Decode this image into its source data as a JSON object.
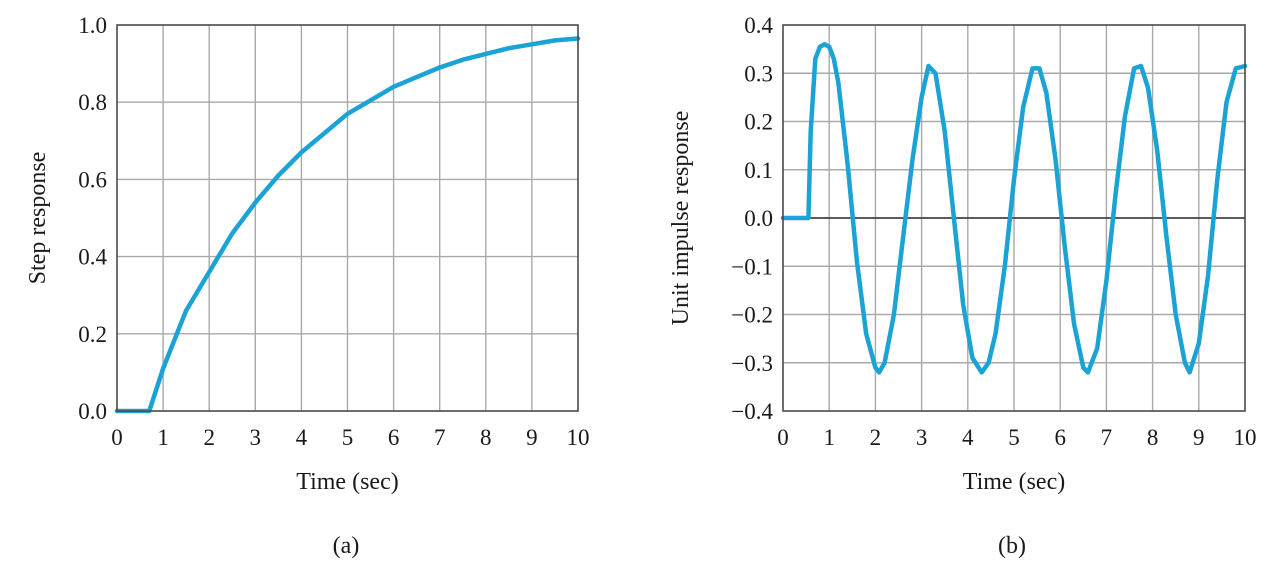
{
  "chart_data": [
    {
      "type": "line",
      "caption": "(a)",
      "xlabel": "Time (sec)",
      "ylabel": "Step response",
      "xlim": [
        0,
        10
      ],
      "ylim": [
        0,
        1
      ],
      "xticks": [
        "0",
        "1",
        "2",
        "3",
        "4",
        "5",
        "6",
        "7",
        "8",
        "9",
        "10"
      ],
      "yticks": [
        "0.0",
        "0.2",
        "0.4",
        "0.6",
        "0.8",
        "1.0"
      ],
      "grid": true,
      "line_color": "#1ba3d6",
      "series": [
        {
          "x": [
            0,
            0.7,
            1.0,
            1.5,
            2.0,
            2.5,
            3.0,
            3.5,
            4.0,
            4.5,
            5.0,
            5.5,
            6.0,
            6.5,
            7.0,
            7.5,
            8.0,
            8.5,
            9.0,
            9.5,
            10.0
          ],
          "values": [
            0,
            0,
            0.11,
            0.26,
            0.36,
            0.46,
            0.54,
            0.61,
            0.67,
            0.72,
            0.77,
            0.805,
            0.84,
            0.865,
            0.89,
            0.91,
            0.925,
            0.94,
            0.95,
            0.96,
            0.965
          ]
        }
      ]
    },
    {
      "type": "line",
      "caption": "(b)",
      "xlabel": "Time (sec)",
      "ylabel": "Unit impulse response",
      "xlim": [
        0,
        10
      ],
      "ylim": [
        -0.4,
        0.4
      ],
      "xticks": [
        "0",
        "1",
        "2",
        "3",
        "4",
        "5",
        "6",
        "7",
        "8",
        "9",
        "10"
      ],
      "yticks": [
        "0.4",
        "0.3",
        "0.2",
        "0.1",
        "0.0",
        "−0.1",
        "−0.2",
        "−0.3",
        "−0.4"
      ],
      "grid": true,
      "zero_line": true,
      "line_color": "#1ba3d6",
      "series": [
        {
          "x": [
            0,
            0.55,
            0.6,
            0.7,
            0.8,
            0.9,
            1.0,
            1.1,
            1.2,
            1.4,
            1.6,
            1.8,
            2.0,
            2.08,
            2.2,
            2.4,
            2.6,
            2.8,
            3.0,
            3.15,
            3.3,
            3.5,
            3.7,
            3.9,
            4.1,
            4.3,
            4.45,
            4.6,
            4.8,
            5.0,
            5.2,
            5.4,
            5.55,
            5.7,
            5.9,
            6.1,
            6.3,
            6.5,
            6.6,
            6.8,
            7.0,
            7.2,
            7.4,
            7.6,
            7.75,
            7.9,
            8.1,
            8.3,
            8.5,
            8.7,
            8.8,
            9.0,
            9.2,
            9.4,
            9.6,
            9.8,
            10.0
          ],
          "values": [
            0,
            0,
            0.18,
            0.33,
            0.355,
            0.36,
            0.355,
            0.33,
            0.28,
            0.11,
            -0.09,
            -0.24,
            -0.31,
            -0.32,
            -0.3,
            -0.2,
            -0.04,
            0.12,
            0.25,
            0.315,
            0.3,
            0.18,
            0.0,
            -0.18,
            -0.29,
            -0.32,
            -0.3,
            -0.24,
            -0.1,
            0.08,
            0.23,
            0.31,
            0.31,
            0.26,
            0.12,
            -0.06,
            -0.22,
            -0.31,
            -0.32,
            -0.27,
            -0.13,
            0.05,
            0.21,
            0.31,
            0.315,
            0.27,
            0.14,
            -0.04,
            -0.2,
            -0.3,
            -0.32,
            -0.26,
            -0.12,
            0.08,
            0.24,
            0.31,
            0.315
          ]
        }
      ]
    }
  ]
}
